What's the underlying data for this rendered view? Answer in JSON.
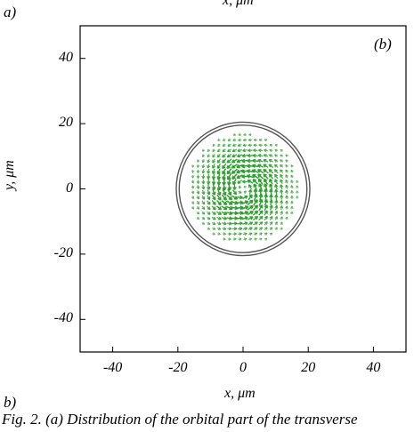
{
  "figure": {
    "top_x_label": "x, μm",
    "label_a": "a)",
    "label_b": "b)",
    "inner_panel_tag": "(b)",
    "caption": "Fig. 2. (a) Distribution of the orbital part of the transverse"
  },
  "chart_data": {
    "type": "scatter",
    "subtype": "vector-field",
    "xlabel": "x, μm",
    "ylabel": "y, μm",
    "xlim": [
      -50,
      50
    ],
    "ylim": [
      -50,
      50
    ],
    "xticks": [
      -40,
      -20,
      0,
      20,
      40
    ],
    "yticks": [
      40,
      20,
      0,
      -20,
      -40
    ],
    "tick_labels_x": [
      "-40",
      "-20",
      "0",
      "20",
      "40"
    ],
    "tick_labels_y": [
      "40",
      "20",
      "0",
      "-20",
      "-40"
    ],
    "grid": false,
    "circles": [
      {
        "cx": 0,
        "cy": 0,
        "r": 20.5,
        "color": "#555555"
      },
      {
        "cx": 0,
        "cy": 0,
        "r": 19.6,
        "color": "#555555"
      }
    ],
    "vector_field": {
      "kind": "vortex-counterclockwise",
      "center": [
        0,
        0
      ],
      "extent_radius": 17,
      "grid_step": 1.6,
      "peak_radius": 5.5,
      "color": "#2e9e2e"
    }
  }
}
